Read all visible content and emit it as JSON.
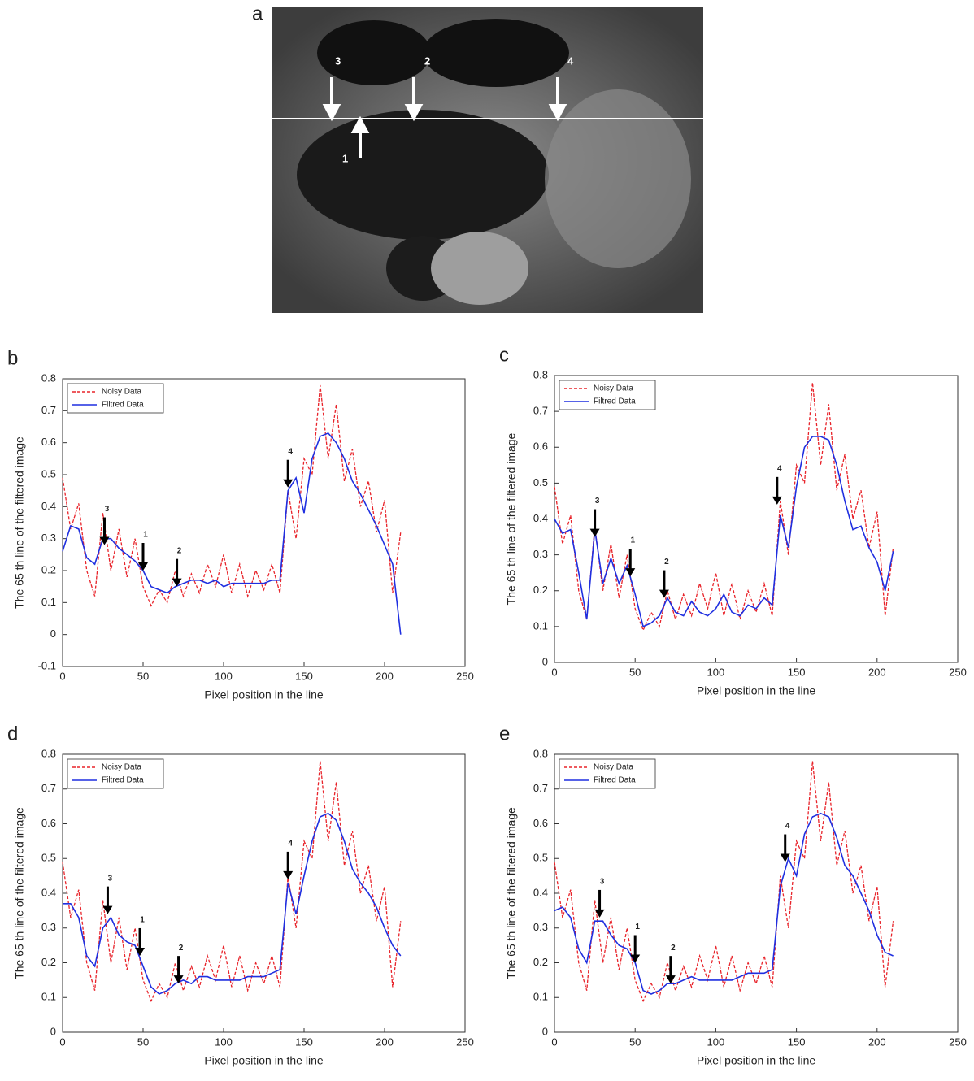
{
  "image": {
    "label": "a",
    "annotations": [
      "3",
      "2",
      "4",
      "1"
    ]
  },
  "chart_data": [
    {
      "type": "line",
      "panel": "b",
      "ylabel": "The 65 th line of the filtered image",
      "xlabel": "Pixel position in the line",
      "x": [
        0,
        5,
        10,
        15,
        20,
        25,
        30,
        35,
        40,
        45,
        50,
        55,
        60,
        65,
        70,
        75,
        80,
        85,
        90,
        95,
        100,
        105,
        110,
        115,
        120,
        125,
        130,
        135,
        140,
        145,
        150,
        155,
        160,
        165,
        170,
        175,
        180,
        185,
        190,
        195,
        200,
        205,
        210
      ],
      "series": [
        {
          "name": "Noisy Data",
          "color": "#e8232a",
          "dashed": true,
          "values": [
            0.49,
            0.33,
            0.41,
            0.2,
            0.12,
            0.38,
            0.2,
            0.33,
            0.18,
            0.3,
            0.15,
            0.09,
            0.14,
            0.1,
            0.2,
            0.12,
            0.19,
            0.13,
            0.22,
            0.15,
            0.25,
            0.13,
            0.22,
            0.12,
            0.2,
            0.14,
            0.22,
            0.13,
            0.45,
            0.3,
            0.55,
            0.5,
            0.78,
            0.55,
            0.72,
            0.48,
            0.58,
            0.4,
            0.48,
            0.32,
            0.42,
            0.13,
            0.32
          ]
        },
        {
          "name": "Filtred Data",
          "color": "#1f2fe0",
          "dashed": false,
          "values": [
            0.26,
            0.34,
            0.33,
            0.24,
            0.22,
            0.3,
            0.3,
            0.27,
            0.25,
            0.23,
            0.2,
            0.15,
            0.14,
            0.13,
            0.15,
            0.16,
            0.17,
            0.17,
            0.16,
            0.17,
            0.15,
            0.16,
            0.16,
            0.16,
            0.16,
            0.16,
            0.17,
            0.17,
            0.45,
            0.49,
            0.38,
            0.55,
            0.62,
            0.63,
            0.6,
            0.55,
            0.48,
            0.44,
            0.39,
            0.34,
            0.28,
            0.22,
            0.0
          ]
        }
      ],
      "annotations": [
        {
          "text": "3",
          "x": 26,
          "y": 0.28
        },
        {
          "text": "1",
          "x": 50,
          "y": 0.2
        },
        {
          "text": "2",
          "x": 71,
          "y": 0.15
        },
        {
          "text": "4",
          "x": 140,
          "y": 0.46
        }
      ],
      "xlim": [
        0,
        250
      ],
      "xticks": [
        0,
        50,
        100,
        150,
        200,
        250
      ],
      "ylim": [
        -0.1,
        0.8
      ],
      "yticks": [
        -0.1,
        0,
        0.1,
        0.2,
        0.3,
        0.4,
        0.5,
        0.6,
        0.7,
        0.8
      ],
      "legend": "upper-left"
    },
    {
      "type": "line",
      "panel": "c",
      "ylabel": "The 65 th line of the filtered image",
      "xlabel": "Pixel position in the line",
      "x": [
        0,
        5,
        10,
        15,
        20,
        25,
        30,
        35,
        40,
        45,
        50,
        55,
        60,
        65,
        70,
        75,
        80,
        85,
        90,
        95,
        100,
        105,
        110,
        115,
        120,
        125,
        130,
        135,
        140,
        145,
        150,
        155,
        160,
        165,
        170,
        175,
        180,
        185,
        190,
        195,
        200,
        205,
        210
      ],
      "series": [
        {
          "name": "Noisy Data",
          "color": "#e8232a",
          "dashed": true,
          "values": [
            0.49,
            0.33,
            0.41,
            0.2,
            0.12,
            0.38,
            0.2,
            0.33,
            0.18,
            0.3,
            0.15,
            0.09,
            0.14,
            0.1,
            0.2,
            0.12,
            0.19,
            0.13,
            0.22,
            0.15,
            0.25,
            0.13,
            0.22,
            0.12,
            0.2,
            0.14,
            0.22,
            0.13,
            0.45,
            0.3,
            0.55,
            0.5,
            0.78,
            0.55,
            0.72,
            0.48,
            0.58,
            0.4,
            0.48,
            0.32,
            0.42,
            0.13,
            0.32
          ]
        },
        {
          "name": "Filtred Data",
          "color": "#1f2fe0",
          "dashed": false,
          "values": [
            0.4,
            0.36,
            0.37,
            0.25,
            0.12,
            0.37,
            0.22,
            0.29,
            0.22,
            0.27,
            0.19,
            0.1,
            0.11,
            0.13,
            0.18,
            0.14,
            0.13,
            0.17,
            0.14,
            0.13,
            0.15,
            0.19,
            0.14,
            0.13,
            0.16,
            0.15,
            0.18,
            0.16,
            0.41,
            0.32,
            0.49,
            0.6,
            0.63,
            0.63,
            0.62,
            0.55,
            0.45,
            0.37,
            0.38,
            0.32,
            0.28,
            0.2,
            0.31
          ]
        }
      ],
      "annotations": [
        {
          "text": "3",
          "x": 25,
          "y": 0.35
        },
        {
          "text": "1",
          "x": 47,
          "y": 0.24
        },
        {
          "text": "2",
          "x": 68,
          "y": 0.18
        },
        {
          "text": "4",
          "x": 138,
          "y": 0.44
        }
      ],
      "xlim": [
        0,
        250
      ],
      "xticks": [
        0,
        50,
        100,
        150,
        200,
        250
      ],
      "ylim": [
        0,
        0.8
      ],
      "yticks": [
        0,
        0.1,
        0.2,
        0.3,
        0.4,
        0.5,
        0.6,
        0.7,
        0.8
      ],
      "legend": "upper-left"
    },
    {
      "type": "line",
      "panel": "d",
      "ylabel": "The 65 th line of the filtered image",
      "xlabel": "Pixel position in the line",
      "x": [
        0,
        5,
        10,
        15,
        20,
        25,
        30,
        35,
        40,
        45,
        50,
        55,
        60,
        65,
        70,
        75,
        80,
        85,
        90,
        95,
        100,
        105,
        110,
        115,
        120,
        125,
        130,
        135,
        140,
        145,
        150,
        155,
        160,
        165,
        170,
        175,
        180,
        185,
        190,
        195,
        200,
        205,
        210
      ],
      "series": [
        {
          "name": "Noisy Data",
          "color": "#e8232a",
          "dashed": true,
          "values": [
            0.49,
            0.33,
            0.41,
            0.2,
            0.12,
            0.38,
            0.2,
            0.33,
            0.18,
            0.3,
            0.15,
            0.09,
            0.14,
            0.1,
            0.2,
            0.12,
            0.19,
            0.13,
            0.22,
            0.15,
            0.25,
            0.13,
            0.22,
            0.12,
            0.2,
            0.14,
            0.22,
            0.13,
            0.45,
            0.3,
            0.55,
            0.5,
            0.78,
            0.55,
            0.72,
            0.48,
            0.58,
            0.4,
            0.48,
            0.32,
            0.42,
            0.13,
            0.32
          ]
        },
        {
          "name": "Filtred Data",
          "color": "#1f2fe0",
          "dashed": false,
          "values": [
            0.37,
            0.37,
            0.33,
            0.22,
            0.19,
            0.3,
            0.33,
            0.28,
            0.26,
            0.25,
            0.19,
            0.13,
            0.11,
            0.12,
            0.14,
            0.15,
            0.14,
            0.16,
            0.16,
            0.15,
            0.15,
            0.15,
            0.15,
            0.16,
            0.16,
            0.16,
            0.17,
            0.18,
            0.43,
            0.34,
            0.45,
            0.55,
            0.62,
            0.63,
            0.61,
            0.55,
            0.47,
            0.43,
            0.4,
            0.36,
            0.3,
            0.25,
            0.22
          ]
        }
      ],
      "annotations": [
        {
          "text": "3",
          "x": 28,
          "y": 0.34
        },
        {
          "text": "1",
          "x": 48,
          "y": 0.22
        },
        {
          "text": "2",
          "x": 72,
          "y": 0.14
        },
        {
          "text": "4",
          "x": 140,
          "y": 0.44
        }
      ],
      "xlim": [
        0,
        250
      ],
      "xticks": [
        0,
        50,
        100,
        150,
        200,
        250
      ],
      "ylim": [
        0,
        0.8
      ],
      "yticks": [
        0,
        0.1,
        0.2,
        0.3,
        0.4,
        0.5,
        0.6,
        0.7,
        0.8
      ],
      "legend": "upper-left"
    },
    {
      "type": "line",
      "panel": "e",
      "ylabel": "The 65 th line of the filtered image",
      "xlabel": "Pixel position in the line",
      "x": [
        0,
        5,
        10,
        15,
        20,
        25,
        30,
        35,
        40,
        45,
        50,
        55,
        60,
        65,
        70,
        75,
        80,
        85,
        90,
        95,
        100,
        105,
        110,
        115,
        120,
        125,
        130,
        135,
        140,
        145,
        150,
        155,
        160,
        165,
        170,
        175,
        180,
        185,
        190,
        195,
        200,
        205,
        210
      ],
      "series": [
        {
          "name": "Noisy Data",
          "color": "#e8232a",
          "dashed": true,
          "values": [
            0.49,
            0.33,
            0.41,
            0.2,
            0.12,
            0.38,
            0.2,
            0.33,
            0.18,
            0.3,
            0.15,
            0.09,
            0.14,
            0.1,
            0.2,
            0.12,
            0.19,
            0.13,
            0.22,
            0.15,
            0.25,
            0.13,
            0.22,
            0.12,
            0.2,
            0.14,
            0.22,
            0.13,
            0.45,
            0.3,
            0.55,
            0.5,
            0.78,
            0.55,
            0.72,
            0.48,
            0.58,
            0.4,
            0.48,
            0.32,
            0.42,
            0.13,
            0.32
          ]
        },
        {
          "name": "Filtred Data",
          "color": "#1f2fe0",
          "dashed": false,
          "values": [
            0.35,
            0.36,
            0.33,
            0.24,
            0.2,
            0.32,
            0.32,
            0.28,
            0.25,
            0.24,
            0.2,
            0.12,
            0.11,
            0.12,
            0.14,
            0.14,
            0.15,
            0.16,
            0.15,
            0.15,
            0.15,
            0.15,
            0.15,
            0.16,
            0.17,
            0.17,
            0.17,
            0.18,
            0.42,
            0.5,
            0.45,
            0.57,
            0.62,
            0.63,
            0.62,
            0.56,
            0.48,
            0.45,
            0.4,
            0.35,
            0.28,
            0.23,
            0.22
          ]
        }
      ],
      "annotations": [
        {
          "text": "3",
          "x": 28,
          "y": 0.33
        },
        {
          "text": "1",
          "x": 50,
          "y": 0.2
        },
        {
          "text": "2",
          "x": 72,
          "y": 0.14
        },
        {
          "text": "4",
          "x": 143,
          "y": 0.49
        }
      ],
      "xlim": [
        0,
        250
      ],
      "xticks": [
        0,
        50,
        100,
        150,
        200,
        250
      ],
      "ylim": [
        0,
        0.8
      ],
      "yticks": [
        0,
        0.1,
        0.2,
        0.3,
        0.4,
        0.5,
        0.6,
        0.7,
        0.8
      ],
      "legend": "upper-left"
    }
  ]
}
